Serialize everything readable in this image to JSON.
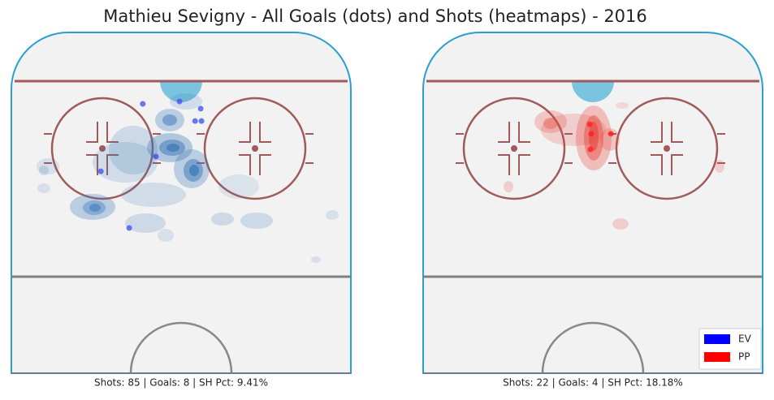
{
  "title": "Mathieu Sevigny - All Goals (dots) and Shots (heatmaps) - 2016",
  "chart_data": [
    {
      "type": "scatter",
      "caption": "Shots: 85 | Goals: 8 | SH Pct: 9.41%",
      "xlim": [
        -42.5,
        42.5
      ],
      "ylim": [
        0,
        85.4
      ],
      "series": [
        {
          "color": "#3b4cf0",
          "x": [
            -9.6,
            -0.4,
            4.9,
            3.5,
            5.1,
            -6.3,
            -20.1,
            -13.0
          ],
          "values": [
            17.9,
            17.3,
            19.1,
            22.2,
            22.2,
            31.1,
            34.8,
            49.0
          ]
        }
      ]
    },
    {
      "type": "scatter",
      "caption": "Shots: 22 | Goals: 4 | SH Pct: 18.18%",
      "xlim": [
        -42.5,
        42.5
      ],
      "ylim": [
        0,
        85.4
      ],
      "series": [
        {
          "color": "#ff1a1a",
          "x": [
            -0.8,
            -0.4,
            4.5,
            -0.6
          ],
          "values": [
            23.0,
            25.4,
            25.4,
            29.3
          ]
        }
      ],
      "legend": [
        {
          "name": "EV",
          "color": "#0000ff"
        },
        {
          "name": "PP",
          "color": "#ff0000"
        }
      ]
    }
  ]
}
